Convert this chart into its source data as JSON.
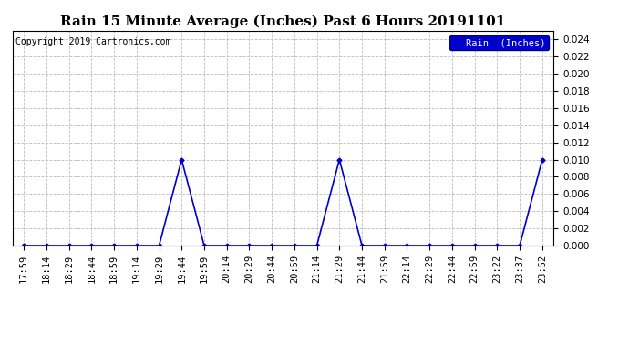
{
  "title": "Rain 15 Minute Average (Inches) Past 6 Hours 20191101",
  "copyright_text": "Copyright 2019 Cartronics.com",
  "legend_label": "Rain  (Inches)",
  "x_ticks_labels": [
    "17:59",
    "18:14",
    "18:29",
    "18:44",
    "18:59",
    "19:14",
    "19:29",
    "19:44",
    "19:59",
    "20:14",
    "20:29",
    "20:44",
    "20:59",
    "21:14",
    "21:29",
    "21:44",
    "21:59",
    "22:14",
    "22:29",
    "22:44",
    "22:59",
    "23:22",
    "23:37",
    "23:52"
  ],
  "y_values": [
    0.0,
    0.0,
    0.0,
    0.0,
    0.0,
    0.0,
    0.0,
    0.01,
    0.0,
    0.0,
    0.0,
    0.0,
    0.0,
    0.0,
    0.01,
    0.0,
    0.0,
    0.0,
    0.0,
    0.0,
    0.0,
    0.0,
    0.0,
    0.01
  ],
  "ylim": [
    0.0,
    0.025
  ],
  "yticks": [
    0.0,
    0.002,
    0.004,
    0.006,
    0.008,
    0.01,
    0.012,
    0.014,
    0.016,
    0.018,
    0.02,
    0.022,
    0.024
  ],
  "line_color": "#0000cc",
  "marker_color": "#0000cc",
  "bg_color": "#ffffff",
  "grid_color": "#bbbbbb",
  "legend_bg": "#0000cc",
  "legend_text_color": "#ffffff",
  "title_fontsize": 11,
  "copyright_fontsize": 7,
  "tick_fontsize": 7.5
}
